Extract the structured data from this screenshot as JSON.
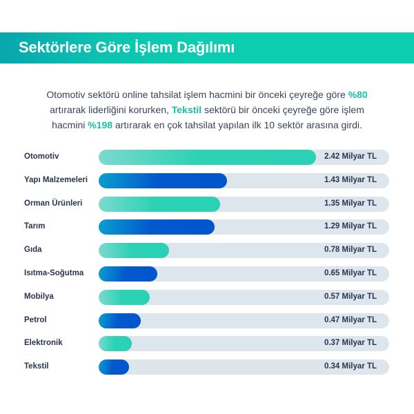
{
  "header": {
    "title": "Sektörlere Göre İşlem Dağılımı"
  },
  "intro": {
    "p1": "Otomotiv sektörü online tahsilat işlem hacmini bir önceki çeyreğe göre ",
    "h1": "%80",
    "p2": " artırarak liderliğini korurken, ",
    "h2": "Tekstil",
    "p3": " sektörü bir önceki çeyreğe göre işlem hacmini ",
    "h3": "%198",
    "p4": " artırarak en çok tahsilat yapılan ilk 10 sektör arasına girdi."
  },
  "colors": {
    "teal": "#2ad1b4",
    "blue": "#0055cc",
    "track": "#dde6ec",
    "header": "#0ccdb0",
    "text": "#2a3450"
  },
  "chart_data": {
    "type": "bar",
    "orientation": "horizontal",
    "title": "Sektörlere Göre İşlem Dağılımı",
    "xlabel": "",
    "ylabel": "",
    "unit": "Milyar TL",
    "categories": [
      "Otomotiv",
      "Yapı Malzemeleri",
      "Orman Ürünleri",
      "Tarım",
      "Gıda",
      "Isıtma-Soğutma",
      "Mobilya",
      "Petrol",
      "Elektronik",
      "Tekstil"
    ],
    "values": [
      2.42,
      1.43,
      1.35,
      1.29,
      0.78,
      0.65,
      0.57,
      0.47,
      0.37,
      0.34
    ],
    "labels": [
      "2.42 Milyar TL",
      "1.43 Milyar TL",
      "1.35 Milyar TL",
      "1.29 Milyar TL",
      "0.78 Milyar TL",
      "0.65 Milyar TL",
      "0.57 Milyar TL",
      "0.47 Milyar TL",
      "0.37 Milyar TL",
      "0.34 Milyar TL"
    ],
    "bar_colors": [
      "teal",
      "blue",
      "teal",
      "blue",
      "teal",
      "blue",
      "teal",
      "blue",
      "teal",
      "blue"
    ],
    "grid": false,
    "legend": null
  }
}
